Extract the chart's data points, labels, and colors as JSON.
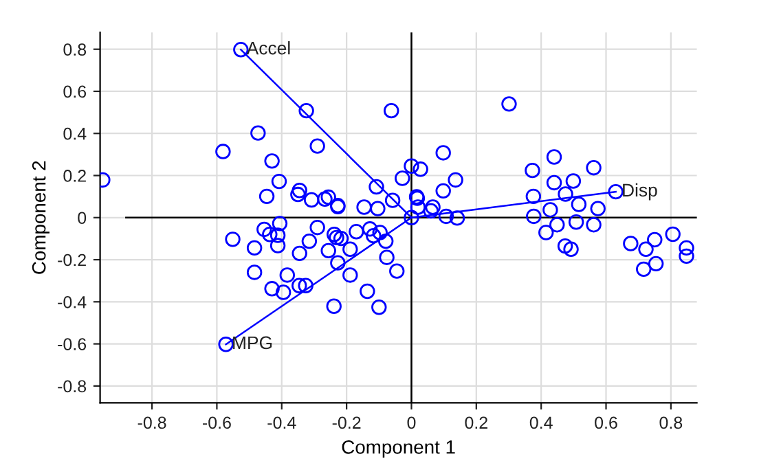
{
  "chart_data": {
    "type": "scatter",
    "xlabel": "Component 1",
    "ylabel": "Component 2",
    "xlim": [
      -0.96,
      0.88
    ],
    "ylim": [
      -0.88,
      0.88
    ],
    "xticks": [
      -0.8,
      -0.6,
      -0.4,
      -0.2,
      0,
      0.2,
      0.4,
      0.6,
      0.8
    ],
    "yticks": [
      -0.8,
      -0.6,
      -0.4,
      -0.2,
      0,
      0.2,
      0.4,
      0.6,
      0.8
    ],
    "grid": true,
    "marker": "circle",
    "series": [
      {
        "type": "line",
        "marker": "none",
        "color": "#000000",
        "x": [
          -0.88,
          0.88
        ],
        "values": [
          0,
          0
        ]
      },
      {
        "type": "line",
        "marker": "none",
        "color": "#000000",
        "x": [
          0,
          0
        ],
        "values": [
          -0.88,
          0.88
        ]
      },
      {
        "type": "line",
        "marker": "none",
        "color": "#0000ff",
        "x": [
          0,
          -0.526
        ],
        "values": [
          0,
          0.798
        ]
      },
      {
        "type": "line",
        "marker": "none",
        "color": "#0000ff",
        "x": [
          0,
          -0.572
        ],
        "values": [
          0,
          -0.602
        ]
      },
      {
        "type": "line",
        "marker": "none",
        "color": "#0000ff",
        "x": [
          0,
          0.63
        ],
        "values": [
          0,
          0.123
        ]
      },
      {
        "color": "#0000ff",
        "x": [
          -0.526,
          -0.324,
          -0.062,
          -0.473,
          -0.581,
          -0.29,
          -0.43,
          -0.952,
          -0.408,
          0.0,
          0.028,
          -0.028,
          -0.108,
          -0.345,
          -0.35,
          -0.446,
          -0.308,
          -0.267,
          -0.256,
          -0.227,
          -0.227,
          -0.146,
          -0.104,
          -0.058,
          0.016,
          0.018,
          0.02,
          0.0,
          -0.551,
          -0.454,
          -0.406,
          -0.437,
          -0.412,
          -0.412,
          -0.484,
          -0.29,
          -0.315,
          -0.345,
          -0.238,
          -0.231,
          -0.217,
          -0.256,
          -0.17,
          -0.128,
          -0.117,
          -0.097,
          -0.079,
          -0.189,
          -0.227,
          -0.076,
          -0.045,
          -0.484,
          -0.383,
          -0.189,
          -0.43,
          -0.395,
          -0.346,
          -0.326,
          -0.136,
          -0.239,
          -0.1,
          -0.572,
          0.301,
          0.098,
          0.136,
          0.098,
          0.066,
          0.06,
          0.107,
          0.141,
          0.373,
          0.44,
          0.44,
          0.499,
          0.562,
          0.376,
          0.475,
          0.516,
          0.428,
          0.575,
          0.63,
          0.377,
          0.449,
          0.508,
          0.562,
          0.415,
          0.474,
          0.492,
          0.676,
          0.723,
          0.75,
          0.806,
          0.848,
          0.848,
          0.716,
          0.754
        ],
        "values": [
          0.798,
          0.508,
          0.508,
          0.402,
          0.314,
          0.34,
          0.269,
          0.179,
          0.172,
          0.245,
          0.23,
          0.187,
          0.146,
          0.129,
          0.11,
          0.101,
          0.084,
          0.088,
          0.097,
          0.057,
          0.052,
          0.05,
          0.043,
          0.082,
          0.099,
          0.092,
          0.05,
          0.0,
          -0.103,
          -0.056,
          -0.028,
          -0.08,
          -0.084,
          -0.133,
          -0.144,
          -0.047,
          -0.112,
          -0.17,
          -0.08,
          -0.095,
          -0.099,
          -0.157,
          -0.067,
          -0.054,
          -0.086,
          -0.071,
          -0.112,
          -0.15,
          -0.215,
          -0.189,
          -0.254,
          -0.26,
          -0.273,
          -0.273,
          -0.338,
          -0.355,
          -0.323,
          -0.323,
          -0.35,
          -0.421,
          -0.426,
          -0.602,
          0.54,
          0.308,
          0.179,
          0.127,
          0.05,
          0.032,
          0.006,
          -0.002,
          0.224,
          0.288,
          0.166,
          0.174,
          0.237,
          0.101,
          0.112,
          0.063,
          0.037,
          0.043,
          0.123,
          0.006,
          -0.034,
          -0.021,
          -0.034,
          -0.071,
          -0.135,
          -0.15,
          -0.123,
          -0.15,
          -0.105,
          -0.079,
          -0.144,
          -0.183,
          -0.245,
          -0.219
        ]
      }
    ],
    "annotations": [
      {
        "text": "Accel",
        "x": -0.526,
        "y": 0.798
      },
      {
        "text": "MPG",
        "x": -0.572,
        "y": -0.602
      },
      {
        "text": "Disp",
        "x": 0.63,
        "y": 0.123
      }
    ]
  }
}
